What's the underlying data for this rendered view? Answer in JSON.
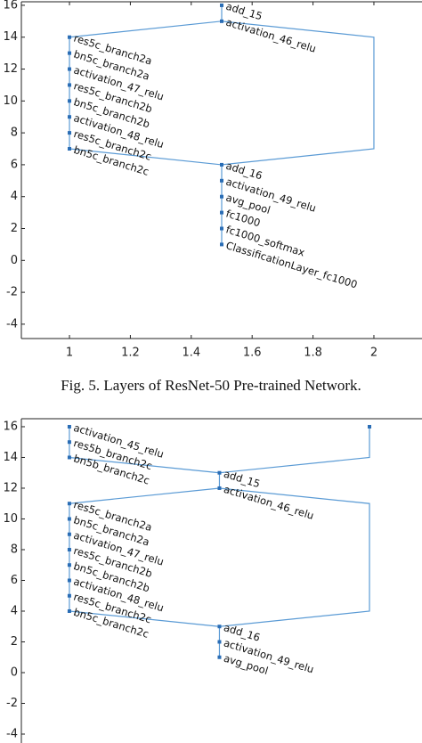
{
  "caption": "Fig. 5.    Layers of ResNet-50 Pre-trained Network.",
  "chart_data": [
    {
      "type": "network",
      "color": "#5b9bd5",
      "node_color": "#2a6db5",
      "xlim": [
        0.842,
        2.158
      ],
      "ylim": [
        -4.9,
        16.22
      ],
      "xticks": [
        1,
        1.2,
        1.4,
        1.6,
        1.8,
        2
      ],
      "yticks": [
        -4,
        -2,
        0,
        2,
        4,
        6,
        8,
        10,
        12,
        14,
        16
      ],
      "nodes": [
        {
          "x": 1.5,
          "y": 16,
          "label": "add_15"
        },
        {
          "x": 1.5,
          "y": 15,
          "label": "activation_46_relu"
        },
        {
          "x": 1,
          "y": 14,
          "label": "res5c_branch2a"
        },
        {
          "x": 1,
          "y": 13,
          "label": "bn5c_branch2a"
        },
        {
          "x": 1,
          "y": 12,
          "label": "activation_47_relu"
        },
        {
          "x": 1,
          "y": 11,
          "label": "res5c_branch2b"
        },
        {
          "x": 1,
          "y": 10,
          "label": "bn5c_branch2b"
        },
        {
          "x": 1,
          "y": 9,
          "label": "activation_48_relu"
        },
        {
          "x": 1,
          "y": 8,
          "label": "res5c_branch2c"
        },
        {
          "x": 1,
          "y": 7,
          "label": "bn5c_branch2c"
        },
        {
          "x": 1.5,
          "y": 6,
          "label": "add_16"
        },
        {
          "x": 1.5,
          "y": 5,
          "label": "activation_49_relu"
        },
        {
          "x": 1.5,
          "y": 4,
          "label": "avg_pool"
        },
        {
          "x": 1.5,
          "y": 3,
          "label": "fc1000"
        },
        {
          "x": 1.5,
          "y": 2,
          "label": "fc1000_softmax"
        },
        {
          "x": 1.5,
          "y": 1,
          "label": "ClassificationLayer_fc1000"
        }
      ],
      "edges": [
        [
          [
            1.5,
            16
          ],
          [
            1.5,
            15
          ]
        ],
        [
          [
            1.5,
            15
          ],
          [
            1,
            14
          ]
        ],
        [
          [
            1,
            14
          ],
          [
            1,
            7
          ]
        ],
        [
          [
            1,
            7
          ],
          [
            1.5,
            6
          ]
        ],
        [
          [
            1.5,
            15
          ],
          [
            2,
            14
          ],
          [
            2,
            7
          ],
          [
            1.5,
            6
          ]
        ],
        [
          [
            1.5,
            6
          ],
          [
            1.5,
            1
          ]
        ]
      ]
    },
    {
      "type": "network",
      "color": "#5b9bd5",
      "node_color": "#2a6db5",
      "xlim": [
        0.84,
        2.175
      ],
      "ylim": [
        -4.58,
        16.52
      ],
      "yticks": [
        -4,
        -2,
        0,
        2,
        4,
        6,
        8,
        10,
        12,
        14,
        16
      ],
      "nodes": [
        {
          "x": 1,
          "y": 16,
          "label": "activation_45_relu"
        },
        {
          "x": 1,
          "y": 15,
          "label": "res5b_branch2c"
        },
        {
          "x": 1,
          "y": 14,
          "label": "bn5b_branch2c"
        },
        {
          "x": 2,
          "y": 16,
          "label": null
        },
        {
          "x": 1.5,
          "y": 13,
          "label": "add_15"
        },
        {
          "x": 1.5,
          "y": 12,
          "label": "activation_46_relu"
        },
        {
          "x": 1,
          "y": 11,
          "label": "res5c_branch2a"
        },
        {
          "x": 1,
          "y": 10,
          "label": "bn5c_branch2a"
        },
        {
          "x": 1,
          "y": 9,
          "label": "activation_47_relu"
        },
        {
          "x": 1,
          "y": 8,
          "label": "res5c_branch2b"
        },
        {
          "x": 1,
          "y": 7,
          "label": "bn5c_branch2b"
        },
        {
          "x": 1,
          "y": 6,
          "label": "activation_48_relu"
        },
        {
          "x": 1,
          "y": 5,
          "label": "res5c_branch2c"
        },
        {
          "x": 1,
          "y": 4,
          "label": "bn5c_branch2c"
        },
        {
          "x": 1.5,
          "y": 3,
          "label": "add_16"
        },
        {
          "x": 1.5,
          "y": 2,
          "label": "activation_49_relu"
        },
        {
          "x": 1.5,
          "y": 1,
          "label": "avg_pool"
        }
      ],
      "edges": [
        [
          [
            1,
            16
          ],
          [
            1,
            14
          ]
        ],
        [
          [
            1,
            14
          ],
          [
            1.5,
            13
          ]
        ],
        [
          [
            2,
            16
          ],
          [
            2,
            14
          ],
          [
            1.5,
            13
          ]
        ],
        [
          [
            1.5,
            13
          ],
          [
            1.5,
            12
          ]
        ],
        [
          [
            1.5,
            12
          ],
          [
            1,
            11
          ]
        ],
        [
          [
            1,
            11
          ],
          [
            1,
            4
          ]
        ],
        [
          [
            1,
            4
          ],
          [
            1.5,
            3
          ]
        ],
        [
          [
            1.5,
            12
          ],
          [
            2,
            11
          ],
          [
            2,
            4
          ],
          [
            1.5,
            3
          ]
        ],
        [
          [
            1.5,
            3
          ],
          [
            1.5,
            1
          ]
        ]
      ]
    }
  ]
}
